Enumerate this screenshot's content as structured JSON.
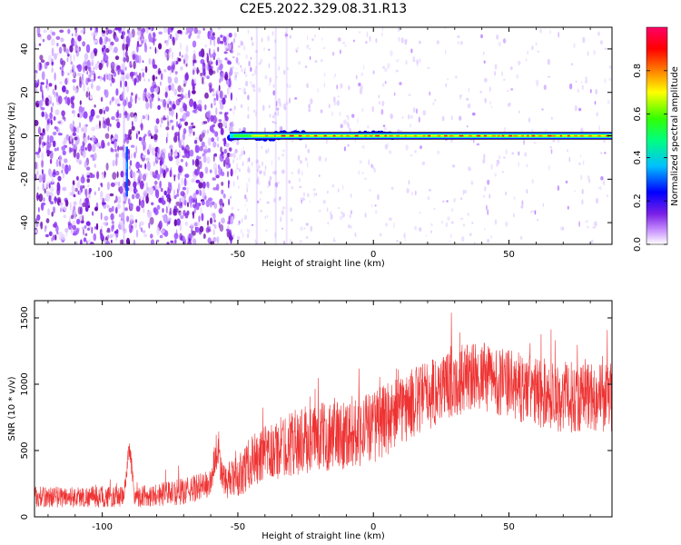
{
  "title": "C2E5.2022.329.08.31.R13",
  "chart_data": [
    {
      "type": "heatmap",
      "name": "spectrogram",
      "title": "C2E5.2022.329.08.31.R13",
      "xlabel": "Height of straight line (km)",
      "ylabel": "Frequency (Hz)",
      "xlim": [
        -125,
        88
      ],
      "ylim": [
        -50,
        50
      ],
      "xticks": [
        -100,
        -50,
        0,
        50
      ],
      "yticks": [
        -40,
        -20,
        0,
        20,
        40
      ],
      "features": {
        "noise_region_x": [
          -125,
          -52
        ],
        "sparse_noise_region_x": [
          -52,
          88
        ],
        "carrier_line_frequency_hz": 0,
        "carrier_start_x": -53,
        "carrier_end_x": 88,
        "transient_spike_x": -91
      },
      "colorbar": {
        "label": "Normalized spectral amplitude",
        "min": 0.0,
        "max": 1.0,
        "ticks": [
          "0.0",
          "0.2",
          "0.4",
          "0.6",
          "0.8"
        ],
        "tick_values": [
          0.0,
          0.2,
          0.4,
          0.6,
          0.8
        ],
        "colormap": [
          "#ffffff",
          "#cc99ff",
          "#7a1fe6",
          "#0000ff",
          "#00bfff",
          "#00ff80",
          "#33ff00",
          "#ffff00",
          "#ff8000",
          "#ff0000",
          "#ff0066"
        ]
      }
    },
    {
      "type": "line",
      "name": "snr",
      "xlabel": "Height of straight line (km)",
      "ylabel": "SNR (10 * v/v)",
      "xlim": [
        -125,
        88
      ],
      "ylim": [
        0,
        1630
      ],
      "xticks": [
        -100,
        -50,
        0,
        50
      ],
      "yticks": [
        0,
        500,
        1000,
        1500
      ],
      "color": "#ee3333",
      "envelope": {
        "x": [
          -125,
          -100,
          -92,
          -90,
          -88,
          -70,
          -60,
          -58,
          -55,
          -50,
          -45,
          -40,
          -30,
          -20,
          -10,
          0,
          10,
          20,
          30,
          40,
          50,
          60,
          70,
          80,
          88
        ],
        "mid": [
          150,
          150,
          150,
          540,
          150,
          190,
          250,
          500,
          260,
          300,
          420,
          460,
          560,
          600,
          630,
          680,
          800,
          920,
          1030,
          1060,
          1000,
          940,
          900,
          910,
          900
        ],
        "spread": [
          80,
          80,
          80,
          80,
          80,
          100,
          110,
          140,
          130,
          160,
          200,
          220,
          250,
          260,
          270,
          280,
          270,
          270,
          270,
          260,
          260,
          270,
          270,
          270,
          270
        ]
      }
    }
  ]
}
